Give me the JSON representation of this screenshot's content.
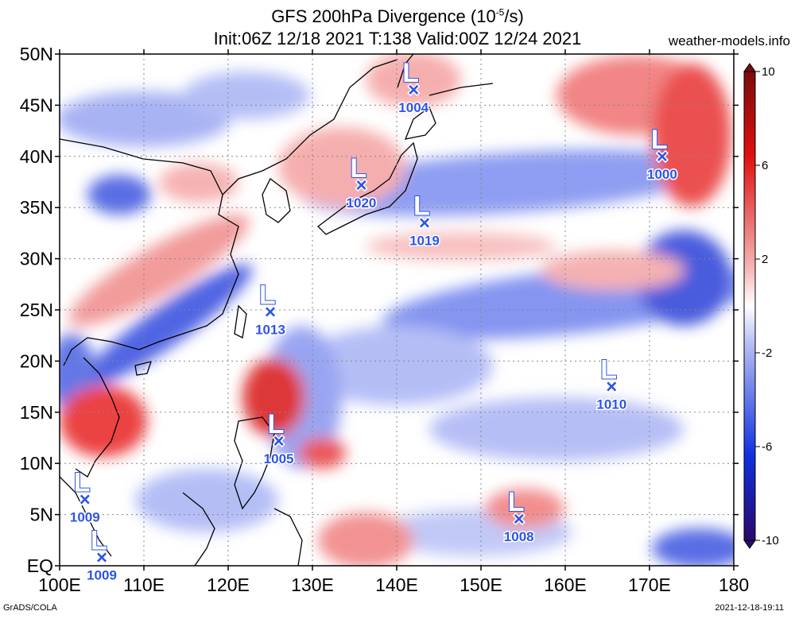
{
  "header": {
    "title_prefix": "GFS 200hPa Divergence (10",
    "title_exp": "-5",
    "title_suffix": "/s)",
    "subtitle": "Init:06Z 12/18 2021 T:138 Valid:00Z 12/24 2021",
    "site": "weather-models.info"
  },
  "footer": {
    "left": "GrADS/COLA",
    "right": "2021-12-18-19:11"
  },
  "map": {
    "lat_labels": [
      "EQ",
      "5N",
      "10N",
      "15N",
      "20N",
      "25N",
      "30N",
      "35N",
      "40N",
      "45N",
      "50N"
    ],
    "lon_labels": [
      "100E",
      "110E",
      "120E",
      "130E",
      "140E",
      "150E",
      "160E",
      "170E",
      "180"
    ],
    "lat_range": [
      0,
      50
    ],
    "lon_range": [
      100,
      180
    ],
    "grid": "dotted",
    "colors": {
      "positive": "#e01010",
      "negative": "#1030e0",
      "neutral": "#ffffff",
      "low_marker": "#2d55e6"
    }
  },
  "colorbar": {
    "labels": [
      "10",
      "6",
      "2",
      "-2",
      "-6",
      "-10"
    ],
    "range": [
      -10,
      10
    ]
  },
  "lows": [
    {
      "lon": 142.0,
      "lat": 46.5,
      "pressure": "1004"
    },
    {
      "lon": 135.8,
      "lat": 37.2,
      "pressure": "1020"
    },
    {
      "lon": 143.3,
      "lat": 33.5,
      "pressure": "1019"
    },
    {
      "lon": 171.5,
      "lat": 40.0,
      "pressure": "1000"
    },
    {
      "lon": 125.0,
      "lat": 24.8,
      "pressure": "1013"
    },
    {
      "lon": 165.5,
      "lat": 17.5,
      "pressure": "1010"
    },
    {
      "lon": 126.0,
      "lat": 12.2,
      "pressure": "1005"
    },
    {
      "lon": 103.0,
      "lat": 6.5,
      "pressure": "1009"
    },
    {
      "lon": 105.0,
      "lat": 0.8,
      "pressure": "1009"
    },
    {
      "lon": 154.5,
      "lat": 4.6,
      "pressure": "1008"
    }
  ]
}
